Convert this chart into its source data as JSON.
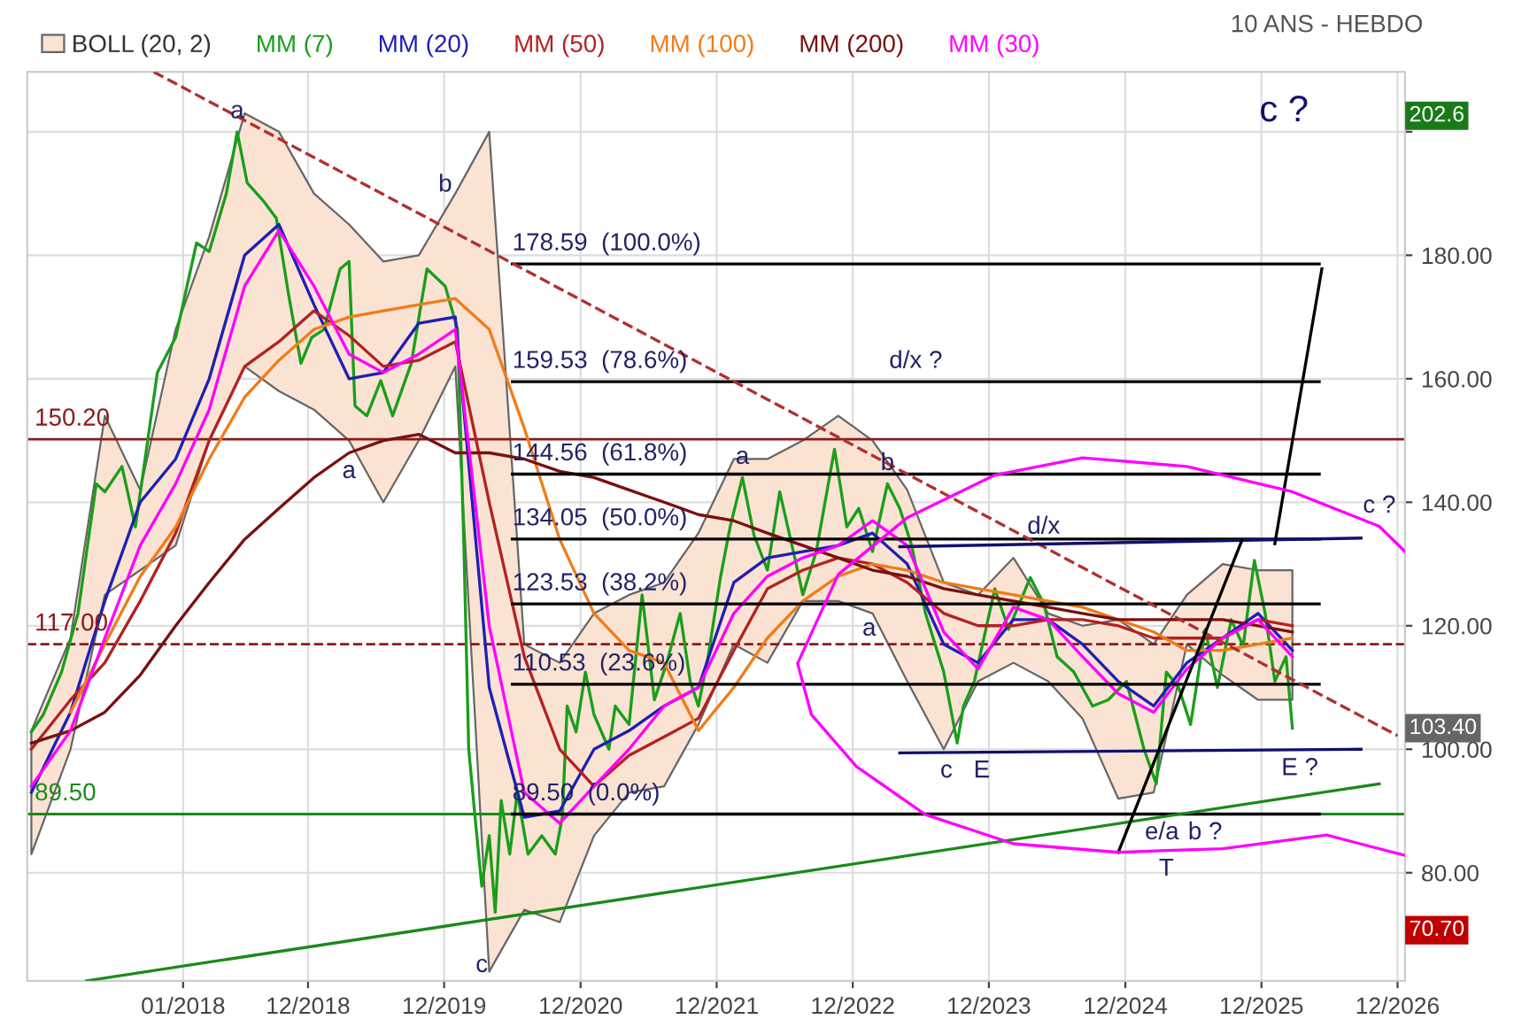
{
  "chart_data": {
    "type": "line",
    "title": "10 ANS - HEBDO",
    "x": [
      "2016-11-20",
      "2017-03-05",
      "2017-06-05",
      "2017-09-08",
      "2017-12-12",
      "2018-03-12",
      "2018-06-15",
      "2018-09-15",
      "2018-12-18",
      "2019-03-22",
      "2019-06-22",
      "2019-09-25",
      "2020-01-01",
      "2020-04-01",
      "2020-07-04",
      "2020-10-07",
      "2021-01-07",
      "2021-04-11",
      "2021-07-14",
      "2021-10-14",
      "2022-01-17",
      "2022-04-17",
      "2022-07-21",
      "2022-10-24",
      "2023-01-24",
      "2023-04-27",
      "2023-08-03",
      "2023-11-03",
      "2024-02-06",
      "2024-05-09",
      "2024-08-09",
      "2024-11-13",
      "2025-02-16",
      "2025-05-16",
      "2025-08-20",
      "2025-11-23",
      "2026-02-23"
    ],
    "series": [
      {
        "name": "BOLL (20, 2)",
        "type": "area",
        "color": "#fbe3d3",
        "values": [
          null,
          null,
          null,
          null,
          null,
          null,
          null,
          null,
          null,
          null,
          null,
          null,
          null,
          null,
          null,
          null,
          null,
          null,
          null,
          null,
          null,
          null,
          null,
          null,
          null,
          null,
          null,
          null,
          null,
          null,
          null,
          null,
          null,
          null,
          null,
          null,
          null
        ],
        "upper": [
          103,
          118,
          154,
          142,
          168,
          183,
          203,
          200,
          190,
          185,
          179,
          180,
          190,
          200,
          117,
          114,
          122,
          125,
          127,
          135,
          147,
          147,
          150,
          154,
          150,
          142,
          127,
          125,
          131,
          122,
          120,
          121,
          117,
          125,
          130,
          129,
          129
        ],
        "lower": [
          83,
          100,
          125,
          129,
          133,
          150,
          162,
          158,
          155,
          150,
          140,
          150,
          162,
          64,
          74,
          72,
          86,
          93,
          94,
          104,
          117,
          114,
          124,
          124,
          122,
          111,
          100,
          111,
          114,
          111,
          105,
          92,
          93,
          117,
          112,
          108,
          108
        ]
      },
      {
        "name": "MM (7)",
        "color": "#1a9e1a",
        "x": [
          "2016-11-20",
          "2016-12-22",
          "2017-02-09",
          "2017-03-25",
          "2017-05-13",
          "2017-06-05",
          "2017-07-21",
          "2017-08-26",
          "2017-10-24",
          "2017-12-12",
          "2018-02-06",
          "2018-03-12",
          "2018-04-27",
          "2018-05-26",
          "2018-06-22",
          "2018-08-03",
          "2018-09-08",
          "2018-10-11",
          "2018-11-13",
          "2018-12-12",
          "2019-01-14",
          "2019-02-26",
          "2019-03-22",
          "2019-04-07",
          "2019-05-09",
          "2019-06-15",
          "2019-07-17",
          "2019-09-05",
          "2019-10-17",
          "2019-12-05",
          "2020-01-07",
          "2020-01-24",
          "2020-02-06",
          "2020-02-23",
          "2020-03-12",
          "2020-04-01",
          "2020-04-17",
          "2020-05-03",
          "2020-05-26",
          "2020-06-15",
          "2020-07-14",
          "2020-08-20",
          "2020-09-25",
          "2020-10-14",
          "2020-10-27",
          "2020-11-20",
          "2020-12-15",
          "2021-01-07",
          "2021-02-16",
          "2021-03-05",
          "2021-04-11",
          "2021-05-16",
          "2021-06-18",
          "2021-07-21",
          "2021-08-26",
          "2021-09-22",
          "2021-10-14",
          "2021-11-09",
          "2021-12-12",
          "2022-01-07",
          "2022-02-09",
          "2022-03-12",
          "2022-04-17",
          "2022-05-20",
          "2022-07-01",
          "2022-07-21",
          "2022-08-26",
          "2022-10-14",
          "2022-11-16",
          "2022-12-18",
          "2023-01-24",
          "2023-03-05",
          "2023-04-07",
          "2023-05-09",
          "2023-06-15",
          "2023-08-03",
          "2023-09-08",
          "2023-09-25",
          "2023-10-24",
          "2023-12-18",
          "2024-01-24",
          "2024-03-22",
          "2024-04-27",
          "2024-06-02",
          "2024-07-17",
          "2024-09-05",
          "2024-10-17",
          "2024-12-05",
          "2025-01-21",
          "2025-02-23",
          "2025-03-22",
          "2025-04-24",
          "2025-05-26",
          "2025-07-04",
          "2025-08-06",
          "2025-09-12",
          "2025-10-14",
          "2025-11-13",
          "2025-12-12",
          "2026-01-07",
          "2026-02-06",
          "2026-02-23"
        ],
        "values": [
          102.8,
          105.6,
          112.5,
          122,
          143,
          141.7,
          145.8,
          136,
          161,
          166.7,
          182,
          180.6,
          190,
          200,
          191.7,
          188.9,
          186,
          173.6,
          162.5,
          166.7,
          168,
          177.8,
          179,
          155.6,
          154,
          159.7,
          154,
          162.5,
          177.8,
          175,
          168,
          133,
          100,
          89,
          77.8,
          86,
          73.6,
          91.7,
          83,
          93,
          83,
          86,
          83,
          89,
          107,
          102.8,
          112.5,
          105.6,
          100,
          107,
          104,
          125,
          108,
          114,
          122,
          111,
          107,
          115,
          127.8,
          136,
          144,
          134.7,
          129,
          141.7,
          130.6,
          125,
          132,
          148.6,
          136,
          139,
          132,
          143,
          139,
          133,
          122,
          112.5,
          101,
          107,
          111,
          126,
          119.4,
          127.8,
          123.6,
          115,
          112.5,
          107,
          108,
          111,
          100,
          94.4,
          112.5,
          110,
          104,
          119.4,
          110,
          121,
          116.7,
          130.6,
          122,
          111,
          115,
          103.4
        ]
      },
      {
        "name": "MM (20)",
        "color": "#1f1fb4",
        "values": [
          93,
          106,
          124,
          140,
          147,
          160,
          180,
          185,
          172,
          160,
          161,
          169,
          170,
          110,
          89,
          90,
          100,
          103,
          107,
          110,
          127,
          131,
          132,
          133,
          135,
          130,
          117,
          114,
          121,
          121,
          117,
          111,
          107,
          114,
          118,
          122,
          116
        ]
      },
      {
        "name": "MM (50)",
        "color": "#b22222",
        "values": [
          100,
          108,
          114,
          124,
          135,
          150,
          162,
          166,
          171,
          167,
          162,
          163,
          166,
          140,
          115,
          100,
          94,
          99,
          102,
          105,
          116,
          126,
          129,
          131,
          130,
          127,
          122,
          120,
          120,
          121,
          121,
          120,
          118,
          118,
          118,
          121,
          120
        ]
      },
      {
        "name": "MM (100)",
        "color": "#f07c1a",
        "values": [
          null,
          106,
          117,
          128,
          136,
          147,
          157,
          163,
          168,
          170,
          171,
          172,
          173,
          168,
          152,
          134,
          122,
          116,
          114,
          103,
          110,
          118,
          124,
          128,
          130,
          129,
          127,
          126,
          125,
          124,
          123,
          121,
          119,
          116,
          116,
          117,
          118
        ]
      },
      {
        "name": "MM (200)",
        "color": "#7a1010",
        "values": [
          101,
          103,
          106,
          112,
          120,
          127,
          134,
          139,
          144,
          148,
          150,
          151,
          148,
          148,
          147,
          145,
          144,
          142,
          140,
          138,
          137,
          135,
          133,
          131,
          129,
          128,
          126,
          125,
          124,
          123,
          122,
          121,
          121,
          121,
          121,
          120,
          119
        ]
      },
      {
        "name": "MM (30)",
        "color": "#ff00ff",
        "values": [
          94,
          103,
          118,
          133,
          143,
          155,
          175,
          184,
          175,
          164,
          161,
          164,
          168,
          120,
          93,
          88,
          94,
          100,
          107,
          110,
          122,
          128,
          131,
          133,
          137,
          133,
          119,
          113,
          123,
          121,
          115,
          109,
          106,
          113,
          118,
          121,
          115
        ]
      },
      {
        "color": "#000000",
        "x": [
          "2020-06-02",
          "2026-05-06"
        ],
        "values": [
          178.59,
          178.59
        ]
      },
      {
        "color": "#000000",
        "x": [
          "2020-06-02",
          "2026-05-06"
        ],
        "values": [
          159.53,
          159.53
        ]
      },
      {
        "color": "#000000",
        "x": [
          "2020-06-02",
          "2026-05-06"
        ],
        "values": [
          144.56,
          144.56
        ]
      },
      {
        "color": "#000000",
        "x": [
          "2020-06-02",
          "2026-05-06"
        ],
        "values": [
          134.05,
          134.05
        ]
      },
      {
        "color": "#000000",
        "x": [
          "2020-06-02",
          "2026-05-06"
        ],
        "values": [
          123.53,
          123.53
        ]
      },
      {
        "color": "#000000",
        "x": [
          "2020-06-02",
          "2026-05-06"
        ],
        "values": [
          110.53,
          110.53
        ]
      },
      {
        "color": "#000000",
        "x": [
          "2020-06-02",
          "2026-05-06"
        ],
        "values": [
          89.5,
          89.5
        ]
      },
      {
        "color": "#b03030",
        "line_style": "dashed",
        "x": [
          "2017-10-14",
          "2026-12-02"
        ],
        "values": [
          209.7,
          102.2
        ]
      },
      {
        "color": "#1a8a1a",
        "x": [
          "2017-04-17",
          "2026-10-14"
        ],
        "values": [
          62.5,
          94.4
        ]
      },
      {
        "color": "#10106e",
        "x": [
          "2023-04-07",
          "2026-08-26"
        ],
        "values": [
          132.8,
          134.2
        ]
      },
      {
        "color": "#10106e",
        "x": [
          "2023-04-07",
          "2026-08-26"
        ],
        "values": [
          99.4,
          100
        ]
      },
      {
        "color": "#000000",
        "x": [
          "2024-11-13",
          "2025-10-11"
        ],
        "values": [
          83.3,
          133.9
        ]
      },
      {
        "color": "#000000",
        "x": [
          "2026-01-07",
          "2026-05-13"
        ],
        "values": [
          133.3,
          177.8
        ]
      },
      {
        "color": "#ff00ff",
        "x": [
          "2026-12-22",
          "2026-05-26",
          "2025-08-20",
          "2025-03-22",
          "2024-11-13",
          "2024-02-06",
          "2023-06-15",
          "2022-12-12",
          "2022-08-13",
          "2022-07-07",
          "2022-10-24",
          "2023-04-27",
          "2023-12-18",
          "2024-08-09",
          "2025-05-16",
          "2026-02-23",
          "2026-10-14",
          "2026-12-22"
        ],
        "values": [
          82.8,
          86.1,
          83.9,
          83.6,
          83.3,
          84.7,
          89.4,
          97.2,
          105.6,
          113.9,
          128.3,
          137.5,
          144.4,
          147.2,
          145.8,
          141.7,
          136.1,
          132
        ]
      }
    ],
    "ref_lines": [
      {
        "axis": "y",
        "value": 150.2,
        "label": "150.20",
        "color": "#8b1a1a"
      },
      {
        "axis": "y",
        "value": 117.0,
        "label": "117.00",
        "color": "#8b1a1a",
        "line_style": "dashed"
      },
      {
        "axis": "y",
        "value": 89.5,
        "label": "89.50",
        "color": "#1a8a1a"
      }
    ],
    "annotations": [
      {
        "text": "178.59  (100.0%)",
        "x": "2020-06-02",
        "y": 178.59
      },
      {
        "text": "159.53  (78.6%)",
        "x": "2020-06-02",
        "y": 159.53
      },
      {
        "text": "144.56  (61.8%)",
        "x": "2020-06-02",
        "y": 144.56
      },
      {
        "text": "134.05  (50.0%)",
        "x": "2020-06-02",
        "y": 134.05
      },
      {
        "text": "123.53  (38.2%)",
        "x": "2020-06-02",
        "y": 123.53
      },
      {
        "text": "110.53  (23.6%)",
        "x": "2020-06-02",
        "y": 110.53
      },
      {
        "text": "89.50  (0.0%)",
        "x": "2020-06-02",
        "y": 89.5
      },
      {
        "text": "a",
        "x": "2018-05-26",
        "y": 200
      },
      {
        "text": "b",
        "x": "2019-12-05",
        "y": 188.1
      },
      {
        "text": "a",
        "x": "2019-03-22",
        "y": 148
      },
      {
        "text": "c",
        "x": "2020-03-12",
        "y": 68
      },
      {
        "text": "a",
        "x": "2022-02-09",
        "y": 144
      },
      {
        "text": "d/x ?",
        "x": "2023-05-20",
        "y": 159.53
      },
      {
        "text": "b",
        "x": "2023-03-05",
        "y": 143
      },
      {
        "text": "a",
        "x": "2023-01-15",
        "y": 122.5
      },
      {
        "text": "d/x",
        "x": "2024-04-27",
        "y": 132.7
      },
      {
        "text": "c",
        "x": "2023-08-10",
        "y": 99.5
      },
      {
        "text": "E",
        "x": "2023-11-13",
        "y": 99.5
      },
      {
        "text": "e/a",
        "x": "2025-03-10",
        "y": 89.5
      },
      {
        "text": "b ?",
        "x": "2025-07-04",
        "y": 89.5
      },
      {
        "text": "T",
        "x": "2025-03-22",
        "y": 83.6
      },
      {
        "text": "E ?",
        "x": "2026-03-15",
        "y": 99.9
      },
      "c ?",
      {
        "text": "c ?",
        "x": "2026-10-14",
        "y": 136.1
      },
      {
        "text": "202.6",
        "y": 202.6
      },
      {
        "text": "103.40",
        "y": 103.4
      },
      {
        "text": "70.70",
        "y": 70.7
      }
    ],
    "xlim": [
      "2016-11-09",
      "2026-12-22"
    ],
    "xticks": [
      {
        "value": "2018-01-01",
        "label": "01/2018"
      },
      {
        "value": "2018-12-02",
        "label": "12/2018"
      },
      {
        "value": "2019-12-02",
        "label": "12/2019"
      },
      {
        "value": "2020-12-02",
        "label": "12/2020"
      },
      {
        "value": "2021-12-02",
        "label": "12/2021"
      },
      {
        "value": "2022-12-02",
        "label": "12/2022"
      },
      {
        "value": "2023-12-02",
        "label": "12/2023"
      },
      {
        "value": "2024-12-02",
        "label": "12/2024"
      },
      {
        "value": "2025-12-02",
        "label": "12/2025"
      },
      {
        "value": "2026-12-02",
        "label": "12/2026"
      }
    ],
    "ylim": [
      62.5,
      209.7
    ],
    "yticks": [
      {
        "value": 80,
        "label": "80.00"
      },
      {
        "value": 100,
        "label": "100.00"
      },
      {
        "value": 120,
        "label": "120.00"
      },
      {
        "value": 140,
        "label": "140.00"
      },
      {
        "value": 160,
        "label": "160.00"
      },
      {
        "value": 180,
        "label": "180.00"
      },
      {
        "value": 200,
        "label": null
      }
    ],
    "grid": true,
    "legend": "top left"
  }
}
